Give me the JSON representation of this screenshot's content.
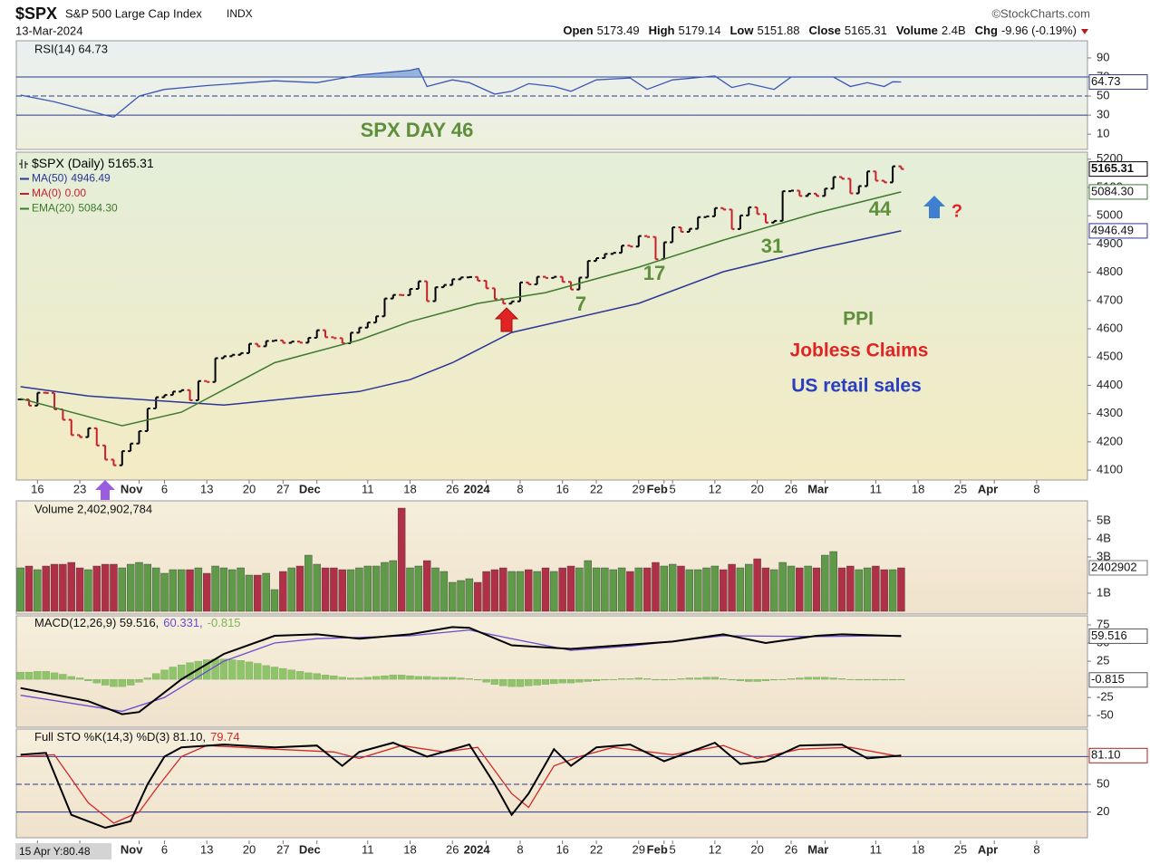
{
  "header": {
    "symbol": "$SPX",
    "name": "S&P 500 Large Cap Index",
    "exchange": "INDX",
    "date": "13-Mar-2024",
    "source": "©StockCharts.com",
    "quote": [
      {
        "label": "Open",
        "value": "5173.49"
      },
      {
        "label": "High",
        "value": "5179.14"
      },
      {
        "label": "Low",
        "value": "5151.88"
      },
      {
        "label": "Close",
        "value": "5165.31"
      },
      {
        "label": "Volume",
        "value": "2.4B"
      },
      {
        "label": "Chg",
        "value": "-9.96 (-0.19%)"
      }
    ],
    "cursor_label": "15 Apr Y:80.48"
  },
  "chart_data": {
    "type": "financial",
    "xlim": [
      -0.5,
      126
    ],
    "xticks": [
      {
        "value": 2,
        "label": "16"
      },
      {
        "value": 7,
        "label": "23"
      },
      {
        "value": 14,
        "label": "Nov"
      },
      {
        "value": 17,
        "label": "6"
      },
      {
        "value": 22,
        "label": "13"
      },
      {
        "value": 27,
        "label": "20"
      },
      {
        "value": 31,
        "label": "27"
      },
      {
        "value": 35,
        "label": "Dec"
      },
      {
        "value": 41,
        "label": "11"
      },
      {
        "value": 46,
        "label": "18"
      },
      {
        "value": 51,
        "label": "26"
      },
      {
        "value": 55,
        "label": "2024"
      },
      {
        "value": 59,
        "label": "8"
      },
      {
        "value": 64,
        "label": "16"
      },
      {
        "value": 68,
        "label": "22"
      },
      {
        "value": 73,
        "label": "29"
      },
      {
        "value": 76,
        "label": "Feb"
      },
      {
        "value": 77,
        "label": "5"
      },
      {
        "value": 82,
        "label": "12"
      },
      {
        "value": 87,
        "label": "20"
      },
      {
        "value": 91,
        "label": "26"
      },
      {
        "value": 95,
        "label": "Mar"
      },
      {
        "value": 101,
        "label": "11"
      },
      {
        "value": 106,
        "label": "18"
      },
      {
        "value": 111,
        "label": "25"
      },
      {
        "value": 115,
        "label": "Apr"
      },
      {
        "value": 120,
        "label": "8"
      }
    ],
    "panels": [
      {
        "type": "line",
        "title": "RSI(14) 64.73",
        "last_label": "64.73",
        "color": "#3a56b8",
        "fill_color": "#6f9ad6",
        "ylim": [
          -6,
          108
        ],
        "yticks": [
          10,
          30,
          50,
          70,
          90
        ],
        "reference_lines": [
          {
            "value": 70,
            "style": "solid"
          },
          {
            "value": 50,
            "style": "dashed"
          },
          {
            "value": 30,
            "style": "solid"
          }
        ],
        "x": [
          0,
          4,
          10,
          11,
          14,
          17,
          22,
          30,
          35,
          40,
          46,
          47,
          48,
          51,
          53,
          56,
          58,
          60,
          63,
          65,
          68,
          72,
          74,
          77,
          82,
          84,
          86,
          89,
          91,
          96,
          98,
          100,
          102,
          103,
          104
        ],
        "values": [
          51,
          44,
          30,
          28,
          50,
          57,
          61,
          66,
          64,
          72,
          77,
          79,
          60,
          67,
          64,
          52,
          55,
          63,
          60,
          55,
          67,
          69,
          57,
          67,
          71,
          59,
          63,
          57,
          70,
          70,
          60,
          64,
          60,
          65,
          64.73
        ]
      },
      {
        "type": "price",
        "ylim": [
          4065,
          5225
        ],
        "yticks": [
          4100,
          4200,
          4300,
          4400,
          4500,
          4600,
          4700,
          4800,
          4900,
          5000,
          5100,
          5200
        ],
        "up_color": "#000000",
        "down_color": "#c8202a",
        "series": [
          {
            "name": "$SPX (Daily)",
            "label": "5165.31",
            "color": "#000000",
            "values": [
              4350,
              4328,
              4374,
              4373,
              4315,
              4278,
              4224,
              4217,
              4248,
              4187,
              4137,
              4117,
              4167,
              4194,
              4238,
              4318,
              4358,
              4366,
              4378,
              4383,
              4347,
              4415,
              4412,
              4496,
              4503,
              4508,
              4514,
              4547,
              4538,
              4557,
              4559,
              4550,
              4555,
              4551,
              4568,
              4595,
              4570,
              4567,
              4549,
              4586,
              4604,
              4622,
              4644,
              4707,
              4720,
              4719,
              4741,
              4768,
              4698,
              4747,
              4755,
              4775,
              4782,
              4783,
              4770,
              4743,
              4705,
              4689,
              4697,
              4764,
              4757,
              4784,
              4780,
              4784,
              4766,
              4739,
              4781,
              4840,
              4850,
              4865,
              4869,
              4894,
              4891,
              4928,
              4925,
              4846,
              4906,
              4959,
              4943,
              4954,
              4995,
              4998,
              5027,
              5022,
              4953,
              5001,
              5030,
              5006,
              4976,
              4982,
              5087,
              5089,
              5070,
              5078,
              5070,
              5096,
              5137,
              5131,
              5079,
              5105,
              5157,
              5124,
              5118,
              5175,
              5165.31
            ]
          },
          {
            "name": "MA(50)",
            "label": "4946.49",
            "color": "#2b3595",
            "x": [
              0,
              8,
              24,
              40,
              46,
              51,
              58,
              73,
              83,
              94,
              104
            ],
            "values": [
              4395,
              4362,
              4330,
              4378,
              4420,
              4480,
              4587,
              4690,
              4802,
              4882,
              4946.49
            ]
          },
          {
            "name": "MA(0)",
            "label": "0.00",
            "color": "#c8202a",
            "x": [],
            "values": []
          },
          {
            "name": "EMA(20)",
            "label": "5084.30",
            "color": "#3d7a2e",
            "x": [
              0,
              12,
              19,
              30,
              40,
              46,
              54,
              62,
              73,
              83,
              94,
              104
            ],
            "values": [
              4353,
              4257,
              4305,
              4480,
              4560,
              4625,
              4690,
              4728,
              4818,
              4914,
              5010,
              5084.3
            ]
          }
        ],
        "annotations": [
          {
            "text": "SPX DAY 46",
            "color": "#5e8f3a"
          },
          {
            "text": "7",
            "color": "#5e8f3a"
          },
          {
            "text": "17",
            "color": "#5e8f3a"
          },
          {
            "text": "31",
            "color": "#5e8f3a"
          },
          {
            "text": "44",
            "color": "#5e8f3a"
          },
          {
            "text": "PPI",
            "color": "#5e8f3a"
          },
          {
            "text": "Jobless Claims",
            "color": "#e02424"
          },
          {
            "text": "US retail sales",
            "color": "#2a3fbf"
          },
          {
            "text": "?",
            "color": "#e02424"
          }
        ]
      },
      {
        "type": "volume",
        "title": "Volume 2,402,902,784",
        "last_label": "2402902",
        "up_color": "#5e9a48",
        "down_color": "#b03048",
        "ylim": [
          -0.15,
          6.1
        ],
        "yticks": [
          {
            "value": 1,
            "label": "1B"
          },
          {
            "value": 3,
            "label": "3B"
          },
          {
            "value": 4,
            "label": "4B"
          },
          {
            "value": 5,
            "label": "5B"
          }
        ],
        "values": [
          2.4,
          2.5,
          2.3,
          2.5,
          2.6,
          2.6,
          2.7,
          2.4,
          2.3,
          2.5,
          2.6,
          2.6,
          2.4,
          2.6,
          2.7,
          2.6,
          2.4,
          2.1,
          2.3,
          2.3,
          2.3,
          2.4,
          2.1,
          2.5,
          2.4,
          2.3,
          2.4,
          2.0,
          2.0,
          2.1,
          1.2,
          2.2,
          2.4,
          2.5,
          3.1,
          2.6,
          2.4,
          2.4,
          2.3,
          2.3,
          2.4,
          2.5,
          2.5,
          2.7,
          2.8,
          5.7,
          2.4,
          2.5,
          2.8,
          2.4,
          2.2,
          1.6,
          1.7,
          1.8,
          1.6,
          2.2,
          2.3,
          2.4,
          2.2,
          2.2,
          2.3,
          2.2,
          2.4,
          2.2,
          2.4,
          2.5,
          2.4,
          2.8,
          2.4,
          2.4,
          2.3,
          2.4,
          2.2,
          2.4,
          2.4,
          2.7,
          2.5,
          2.6,
          2.5,
          2.3,
          2.3,
          2.4,
          2.5,
          2.3,
          2.6,
          2.4,
          2.6,
          2.9,
          2.4,
          2.3,
          2.7,
          2.5,
          2.4,
          2.5,
          2.4,
          3.1,
          3.3,
          2.4,
          2.5,
          2.3,
          2.4,
          2.5,
          2.3,
          2.3,
          2.4
        ]
      },
      {
        "type": "macd",
        "title_parts": [
          {
            "text": "MACD(12,26,9) 59.516,",
            "color": "#111111"
          },
          {
            "text": "60.331,",
            "color": "#6a4bd0"
          },
          {
            "text": "-0.815",
            "color": "#7fb35a"
          }
        ],
        "ylim": [
          -66,
          87.5
        ],
        "yticks": [
          {
            "value": 75,
            "label": "75"
          },
          {
            "value": 50,
            "label": "50"
          },
          {
            "value": 25,
            "label": "25"
          },
          {
            "value": -25,
            "label": "-25"
          },
          {
            "value": -50,
            "label": "-50"
          }
        ],
        "macd": {
          "label": "59.516",
          "color": "#000000",
          "x": [
            0,
            8,
            12,
            14,
            19,
            24,
            30,
            35,
            40,
            46,
            51,
            53,
            58,
            65,
            72,
            77,
            83,
            88,
            94,
            97,
            104
          ],
          "values": [
            -12,
            -30,
            -48,
            -45,
            0,
            35,
            60,
            62,
            56,
            62,
            72,
            71,
            47,
            42,
            48,
            52,
            62,
            50,
            60,
            62,
            59.516
          ]
        },
        "signal": {
          "label": "60.331",
          "color": "#6a4bd0",
          "x": [
            0,
            12,
            17,
            24,
            30,
            35,
            46,
            53,
            58,
            65,
            72,
            83,
            94,
            104
          ],
          "values": [
            -22,
            -44,
            -25,
            25,
            50,
            56,
            60,
            68,
            56,
            40,
            46,
            60,
            59,
            60.331
          ]
        },
        "histogram": {
          "label": "-0.815",
          "color": "#8fc46a",
          "values": [
            10,
            10,
            11,
            11,
            9,
            7,
            4,
            2,
            -2,
            -5,
            -8,
            -10,
            -10,
            -8,
            -4,
            2,
            8,
            13,
            17,
            20,
            23,
            25,
            27,
            28,
            28,
            27,
            26,
            24,
            22,
            19,
            17,
            15,
            13,
            11,
            9,
            8,
            6,
            5,
            3,
            2,
            2,
            3,
            4,
            5,
            6,
            6,
            5,
            4,
            4,
            3,
            3,
            3,
            2,
            1,
            -1,
            -4,
            -7,
            -9,
            -10,
            -10,
            -9,
            -8,
            -7,
            -6,
            -5,
            -5,
            -4,
            -3,
            -2,
            -1,
            0,
            1,
            1,
            2,
            1,
            -1,
            -1,
            0,
            1,
            2,
            2,
            3,
            3,
            1,
            -1,
            -2,
            -3,
            -3,
            -2,
            -1,
            0,
            1,
            2,
            3,
            3,
            3,
            2,
            1,
            0,
            -1,
            -1,
            -1,
            -1,
            -1,
            -0.815
          ]
        }
      },
      {
        "type": "stochastic",
        "title_parts": [
          {
            "text": "Full STO %K(14,3) %D(3) 81.10,",
            "color": "#111111"
          },
          {
            "text": "79.74",
            "color": "#d02a2a"
          }
        ],
        "ylim": [
          -7.8,
          109.8
        ],
        "yticks": [
          20,
          50,
          80
        ],
        "reference_lines": [
          {
            "value": 80,
            "style": "solid"
          },
          {
            "value": 50,
            "style": "dashed"
          },
          {
            "value": 20,
            "style": "solid"
          }
        ],
        "k": {
          "label": "81.10",
          "color": "#000000",
          "x": [
            0,
            3,
            6,
            10,
            13,
            15,
            17,
            19,
            24,
            30,
            35,
            38,
            40,
            44,
            48,
            53,
            56,
            58,
            60,
            63,
            65,
            68,
            72,
            76,
            82,
            85,
            88,
            92,
            97,
            100,
            104
          ],
          "values": [
            82,
            84,
            17,
            3,
            10,
            50,
            80,
            90,
            93,
            90,
            92,
            70,
            85,
            95,
            80,
            93,
            50,
            17,
            40,
            88,
            70,
            90,
            93,
            75,
            95,
            72,
            75,
            92,
            93,
            78,
            81.1
          ]
        },
        "d": {
          "label": "79.74",
          "color": "#d02a2a",
          "x": [
            0,
            4,
            8,
            11,
            14,
            16,
            19,
            22,
            30,
            37,
            40,
            45,
            50,
            54,
            58,
            60,
            63,
            66,
            70,
            77,
            83,
            87,
            92,
            98,
            104
          ],
          "values": [
            80,
            82,
            30,
            8,
            20,
            45,
            80,
            92,
            88,
            85,
            78,
            92,
            85,
            90,
            40,
            25,
            70,
            80,
            90,
            82,
            92,
            78,
            88,
            90,
            79.74
          ]
        }
      }
    ]
  }
}
